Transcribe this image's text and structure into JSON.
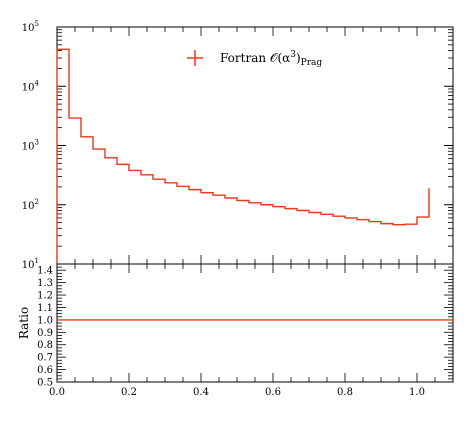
{
  "colors": {
    "series": "#e8391a",
    "axis": "#000000"
  },
  "legend": {
    "label_base": "Fortran 𝒪(α",
    "label_exp": "3",
    "label_close": ")",
    "label_sub": "Prag"
  },
  "chart_data": [
    {
      "type": "line",
      "panel": "main",
      "yscale": "log",
      "xlim": [
        0.0,
        1.1
      ],
      "ylim": [
        10,
        100000
      ],
      "y_tick_labels": [
        "10",
        "10",
        "10",
        "10",
        "10"
      ],
      "y_tick_exps": [
        "1",
        "2",
        "3",
        "4",
        "5"
      ],
      "series": [
        {
          "name": "Fortran 𝒪(α³)Prag",
          "drawstyle": "steps",
          "bin_edges": [
            0.0,
            0.0333,
            0.0667,
            0.1,
            0.1333,
            0.1667,
            0.2,
            0.2333,
            0.2667,
            0.3,
            0.3333,
            0.3667,
            0.4,
            0.4333,
            0.4667,
            0.5,
            0.5333,
            0.5667,
            0.6,
            0.6333,
            0.6667,
            0.7,
            0.7333,
            0.7667,
            0.8,
            0.8333,
            0.8667,
            0.9,
            0.9333,
            0.9667,
            1.0,
            1.0333
          ],
          "values": [
            42000,
            2900,
            1400,
            870,
            620,
            480,
            380,
            320,
            270,
            235,
            205,
            180,
            160,
            145,
            130,
            118,
            108,
            100,
            93,
            86,
            80,
            74,
            69,
            64,
            60,
            56,
            52,
            48,
            46,
            47,
            62,
            190
          ]
        }
      ]
    },
    {
      "type": "line",
      "panel": "ratio",
      "xlim": [
        0.0,
        1.1
      ],
      "ylim": [
        0.5,
        1.45
      ],
      "ylabel": "Ratio",
      "x_ticks": [
        "0.0",
        "0.2",
        "0.4",
        "0.6",
        "0.8",
        "1.0"
      ],
      "y_ticks": [
        "0.5",
        "0.6",
        "0.7",
        "0.8",
        "0.9",
        "1.0",
        "1.1",
        "1.2",
        "1.3",
        "1.4"
      ],
      "series": [
        {
          "name": "",
          "x": [
            0.0,
            1.1
          ],
          "values": [
            1.0,
            1.0
          ]
        }
      ]
    }
  ]
}
